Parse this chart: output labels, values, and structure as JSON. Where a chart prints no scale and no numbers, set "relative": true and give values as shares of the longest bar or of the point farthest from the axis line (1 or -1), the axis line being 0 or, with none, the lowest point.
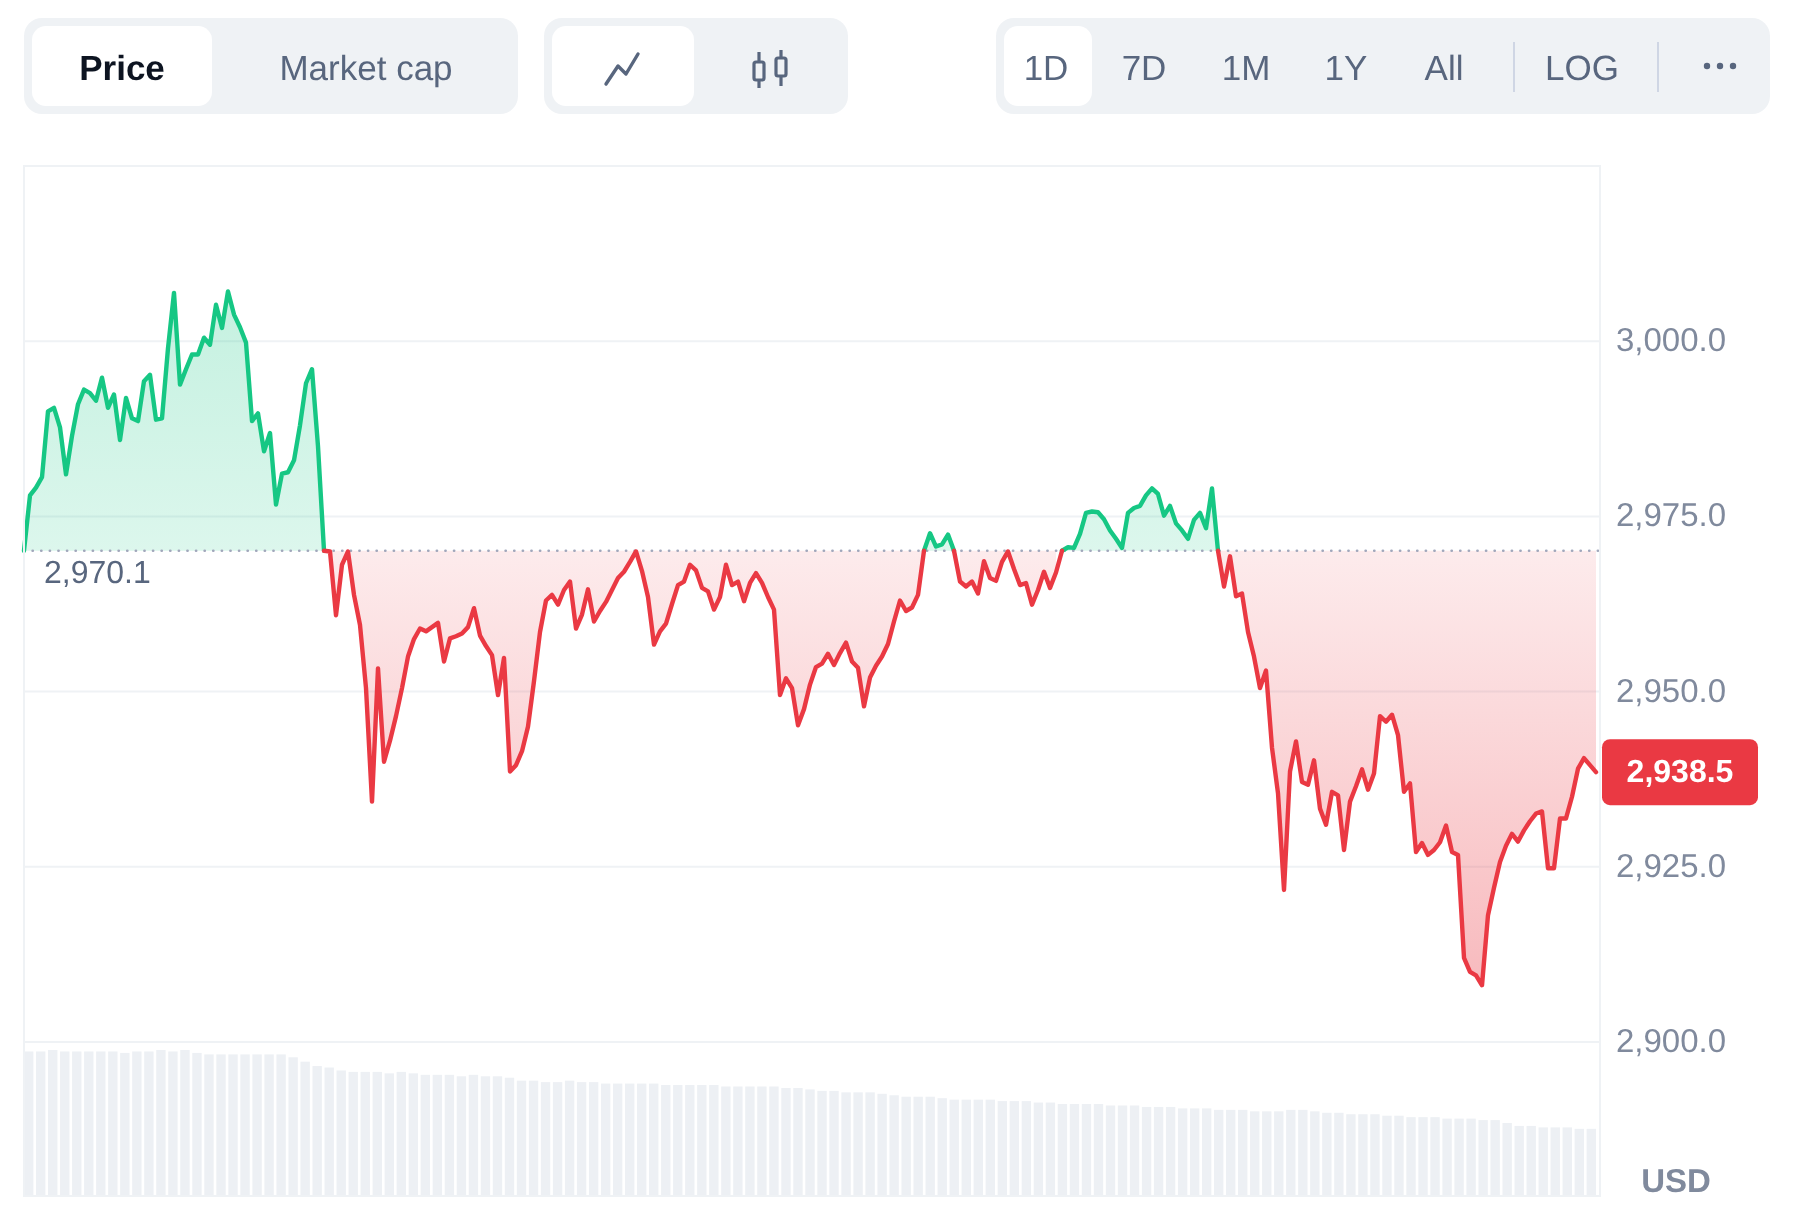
{
  "chart_data": [
    {
      "type": "line",
      "categories": [
        null,
        null,
        null,
        null,
        null,
        null,
        null,
        null,
        null,
        null,
        null,
        null,
        null,
        null,
        null,
        null,
        null,
        null,
        null,
        null,
        null,
        null,
        null,
        null,
        null,
        null,
        null,
        null,
        null,
        null,
        null,
        null,
        null,
        null,
        null,
        null,
        null,
        null,
        null,
        null,
        null,
        null,
        null,
        null,
        null,
        null,
        null,
        null,
        null,
        null,
        null,
        null,
        null,
        null,
        null,
        null,
        null,
        null,
        null,
        null,
        null,
        null,
        null,
        null,
        null,
        null,
        null,
        null,
        null,
        null,
        null,
        null,
        null,
        null,
        null,
        null,
        null,
        null,
        null,
        null,
        null,
        null,
        null,
        null,
        null,
        null,
        null,
        null,
        null,
        null,
        null,
        null,
        null,
        null,
        null,
        null,
        null,
        null,
        null,
        null,
        null,
        null,
        null,
        null,
        null,
        null,
        null,
        null,
        null,
        null,
        null,
        null,
        null,
        null,
        null,
        null,
        null,
        null,
        null,
        null,
        null,
        null,
        null,
        null,
        null,
        null,
        null,
        null,
        null,
        null,
        null,
        null,
        null,
        null,
        null,
        null,
        null,
        null,
        null,
        null,
        null,
        null,
        null,
        null,
        null,
        null,
        null,
        null,
        null,
        null,
        null,
        null,
        null,
        null,
        null,
        null,
        null,
        null,
        null,
        null,
        null,
        null,
        null,
        null,
        null,
        null,
        null,
        null,
        null,
        null,
        null,
        null,
        null,
        null,
        null,
        null,
        null,
        null,
        null,
        null,
        null,
        null,
        null,
        null,
        null,
        null,
        null,
        null,
        null,
        null,
        null,
        null,
        null,
        null,
        null,
        null,
        null,
        null,
        null,
        null,
        null,
        null,
        null,
        null,
        null,
        null,
        null,
        null,
        null,
        null,
        null,
        null,
        null,
        null,
        null,
        null,
        null,
        null,
        null,
        null,
        null,
        null,
        null,
        null,
        null,
        null,
        null,
        null,
        null,
        null,
        null,
        null,
        null,
        null,
        null,
        null,
        null,
        null,
        null,
        null,
        null,
        null,
        null,
        null,
        null,
        null,
        null,
        null,
        null,
        null,
        null,
        null,
        null,
        null,
        null,
        null,
        null,
        null,
        null,
        null,
        null,
        null,
        null
      ],
      "series": [
        {
          "color": "#16c784",
          "values": [
            2970.1,
            2978.0,
            2979.1,
            2980.6,
            2990.0,
            2990.5,
            2987.7,
            2981.0,
            2986.5,
            2991.0,
            2993.1,
            2992.6,
            2991.5,
            2994.8,
            2990.5,
            2992.4,
            2985.9,
            2991.9,
            2989.0,
            2988.6,
            2994.3,
            2995.2,
            2988.8,
            2989.0,
            2999.0,
            3006.9,
            2993.8,
            2996.0,
            2998.1,
            2998.1,
            3000.5,
            2999.5,
            3005.2,
            3001.9,
            3007.1,
            3003.8,
            3002.0,
            2999.8,
            2988.6,
            2989.7,
            2984.3,
            2986.9,
            2976.7,
            2981.1,
            2981.3,
            2983.0,
            2988.0,
            2994.0,
            2996.0,
            2985.0,
            2970.1,
            null,
            null,
            null,
            null,
            null,
            null,
            null,
            null,
            null,
            null,
            null,
            null,
            null,
            null,
            null,
            null,
            null,
            null,
            null,
            null,
            null,
            null,
            null,
            null,
            null,
            null,
            null,
            null,
            null,
            null,
            null,
            null,
            null,
            null,
            null,
            null,
            null,
            null,
            null,
            null,
            null,
            null,
            null,
            null,
            null,
            null,
            null,
            null,
            null,
            null,
            null,
            null,
            null,
            null,
            null,
            null,
            null,
            null,
            null,
            null,
            null,
            null,
            null,
            null,
            null,
            null,
            null,
            null,
            null,
            null,
            null,
            null,
            null,
            null,
            null,
            null,
            null,
            null,
            null,
            null,
            null,
            null,
            null,
            null,
            null,
            null,
            null,
            null,
            null,
            null,
            null,
            null,
            null,
            null,
            null,
            null,
            null,
            null,
            null,
            2970.1,
            2972.6,
            2970.7,
            2971.0,
            2972.4,
            2970.1,
            null,
            null,
            null,
            null,
            null,
            null,
            null,
            null,
            null,
            null,
            null,
            null,
            null,
            null,
            null,
            null,
            null,
            2970.1,
            2970.6,
            2970.5,
            2972.5,
            2975.5,
            2975.7,
            2975.6,
            2974.6,
            2973.0,
            2971.8,
            2970.5,
            2975.5,
            2976.2,
            2976.5,
            2978.0,
            2979.0,
            2978.2,
            2975.1,
            2976.5,
            2974.0,
            2973.0,
            2971.8,
            2974.5,
            2975.5,
            2973.3,
            2979.0,
            2970.1,
            null,
            null,
            null,
            null,
            null,
            null,
            null,
            null,
            null,
            null,
            null,
            null,
            null,
            null,
            null,
            null,
            null,
            null,
            null,
            null,
            null,
            null,
            null,
            null,
            null,
            null,
            null,
            null,
            null,
            null,
            null,
            null,
            null,
            null,
            null,
            null,
            null,
            null,
            null,
            null,
            null,
            null,
            null,
            null,
            null,
            null,
            null,
            null,
            null,
            null,
            null,
            null,
            null,
            null,
            null,
            null,
            null,
            null,
            null,
            null,
            null,
            null,
            null
          ],
          "lower": [
            2970.1,
            2970.1,
            2970.1,
            2970.1,
            2970.1,
            2970.1,
            2970.1,
            2970.1,
            2970.1,
            2970.1,
            2970.1,
            2970.1,
            2970.1,
            2970.1,
            2970.1,
            2970.1,
            2970.1,
            2970.1,
            2970.1,
            2970.1,
            2970.1,
            2970.1,
            2970.1,
            2970.1,
            2970.1,
            2970.1,
            2970.1,
            2970.1,
            2970.1,
            2970.1,
            2970.1,
            2970.1,
            2970.1,
            2970.1,
            2970.1,
            2970.1,
            2970.1,
            2970.1,
            2970.1,
            2970.1,
            2970.1,
            2970.1,
            2970.1,
            2970.1,
            2970.1,
            2970.1,
            2970.1,
            2970.1,
            2970.1,
            2970.1,
            2970.1,
            null,
            null,
            null,
            null,
            null,
            null,
            null,
            null,
            null,
            null,
            null,
            null,
            null,
            null,
            null,
            null,
            null,
            null,
            null,
            null,
            null,
            null,
            null,
            null,
            null,
            null,
            null,
            null,
            null,
            null,
            null,
            null,
            null,
            null,
            null,
            null,
            null,
            null,
            null,
            null,
            null,
            null,
            null,
            null,
            null,
            null,
            null,
            null,
            null,
            null,
            null,
            null,
            null,
            null,
            null,
            null,
            null,
            null,
            null,
            null,
            null,
            null,
            null,
            null,
            null,
            null,
            null,
            null,
            null,
            null,
            null,
            null,
            null,
            null,
            null,
            null,
            null,
            null,
            null,
            null,
            null,
            null,
            null,
            null,
            null,
            null,
            null,
            null,
            null,
            null,
            null,
            null,
            null,
            null,
            null,
            null,
            null,
            null,
            null,
            2970.1,
            2970.1,
            2970.1,
            2970.1,
            2970.1,
            2970.1,
            null,
            null,
            null,
            null,
            null,
            null,
            null,
            null,
            null,
            null,
            null,
            null,
            null,
            null,
            null,
            null,
            null,
            2970.1,
            2970.1,
            2970.1,
            2970.1,
            2970.1,
            2970.1,
            2970.1,
            2970.1,
            2970.1,
            2970.1,
            2970.1,
            2970.1,
            2970.1,
            2970.1,
            2970.1,
            2970.1,
            2970.1,
            2970.1,
            2970.1,
            2970.1,
            2970.1,
            2970.1,
            2970.1,
            2970.1,
            2970.1,
            2970.1,
            2970.1,
            null,
            null,
            null,
            null,
            null,
            null,
            null,
            null,
            null,
            null,
            null,
            null,
            null,
            null,
            null,
            null,
            null,
            null,
            null,
            null,
            null,
            null,
            null,
            null,
            null,
            null,
            null,
            null,
            null,
            null,
            null,
            null,
            null,
            null,
            null,
            null,
            null,
            null,
            null,
            null,
            null,
            null,
            null,
            null,
            null,
            null,
            null,
            null,
            null,
            null,
            null,
            null,
            null,
            null,
            null,
            null,
            null,
            null,
            null,
            null,
            null,
            null,
            null
          ],
          "upper": [
            2970.1,
            2978.0,
            2979.1,
            2980.6,
            2990.0,
            2990.5,
            2987.7,
            2981.0,
            2986.5,
            2991.0,
            2993.1,
            2992.6,
            2991.5,
            2994.8,
            2990.5,
            2992.4,
            2985.9,
            2991.9,
            2989.0,
            2988.6,
            2994.3,
            2995.2,
            2988.8,
            2989.0,
            2999.0,
            3006.9,
            2993.8,
            2996.0,
            2998.1,
            2998.1,
            3000.5,
            2999.5,
            3005.2,
            3001.9,
            3007.1,
            3003.8,
            3002.0,
            2999.8,
            2988.6,
            2989.7,
            2984.3,
            2986.9,
            2976.7,
            2981.1,
            2981.3,
            2983.0,
            2988.0,
            2994.0,
            2996.0,
            2985.0,
            2970.1,
            null,
            null,
            null,
            null,
            null,
            null,
            null,
            null,
            null,
            null,
            null,
            null,
            null,
            null,
            null,
            null,
            null,
            null,
            null,
            null,
            null,
            null,
            null,
            null,
            null,
            null,
            null,
            null,
            null,
            null,
            null,
            null,
            null,
            null,
            null,
            null,
            null,
            null,
            null,
            null,
            null,
            null,
            null,
            null,
            null,
            null,
            null,
            null,
            null,
            null,
            null,
            null,
            null,
            null,
            null,
            null,
            null,
            null,
            null,
            null,
            null,
            null,
            null,
            null,
            null,
            null,
            null,
            null,
            null,
            null,
            null,
            null,
            null,
            null,
            null,
            null,
            null,
            null,
            null,
            null,
            null,
            null,
            null,
            null,
            null,
            null,
            null,
            null,
            null,
            null,
            null,
            null,
            null,
            null,
            null,
            null,
            null,
            null,
            null,
            2970.1,
            2972.6,
            2970.7,
            2971.0,
            2972.4,
            2970.1,
            null,
            null,
            null,
            null,
            null,
            null,
            null,
            null,
            null,
            null,
            null,
            null,
            null,
            null,
            null,
            null,
            null,
            2970.1,
            2970.6,
            2970.5,
            2972.5,
            2975.5,
            2975.7,
            2975.6,
            2974.6,
            2973.0,
            2971.8,
            2970.5,
            2975.5,
            2976.2,
            2976.5,
            2978.0,
            2979.0,
            2978.2,
            2975.1,
            2976.5,
            2974.0,
            2973.0,
            2971.8,
            2974.5,
            2975.5,
            2973.3,
            2979.0,
            2970.1,
            null,
            null,
            null,
            null,
            null,
            null,
            null,
            null,
            null,
            null,
            null,
            null,
            null,
            null,
            null,
            null,
            null,
            null,
            null,
            null,
            null,
            null,
            null,
            null,
            null,
            null,
            null,
            null,
            null,
            null,
            null,
            null,
            null,
            null,
            null,
            null,
            null,
            null,
            null,
            null,
            null,
            null,
            null,
            null,
            null,
            null,
            null,
            null,
            null,
            null,
            null,
            null,
            null,
            null,
            null,
            null,
            null,
            null,
            null,
            null,
            null,
            null,
            null
          ]
        },
        {
          "color": "#ea3943",
          "values": [
            null,
            null,
            null,
            null,
            null,
            null,
            null,
            null,
            null,
            null,
            null,
            null,
            null,
            null,
            null,
            null,
            null,
            null,
            null,
            null,
            null,
            null,
            null,
            null,
            null,
            null,
            null,
            null,
            null,
            null,
            null,
            null,
            null,
            null,
            null,
            null,
            null,
            null,
            null,
            null,
            null,
            null,
            null,
            null,
            null,
            null,
            null,
            null,
            null,
            null,
            2970.1,
            2970.0,
            2960.9,
            2968.1,
            2970.0,
            2963.8,
            2959.5,
            2950.5,
            2934.3,
            2953.3,
            2940.0,
            2943.0,
            2946.5,
            2950.5,
            2955.0,
            2957.5,
            2959.0,
            2958.6,
            2959.2,
            2959.8,
            2954.3,
            2957.6,
            2957.9,
            2958.3,
            2959.2,
            2961.9,
            2958.0,
            2956.5,
            2955.2,
            2949.5,
            2954.8,
            2938.6,
            2939.5,
            2941.5,
            2945.0,
            2951.5,
            2958.5,
            2963.0,
            2963.8,
            2962.4,
            2964.5,
            2965.7,
            2959.0,
            2961.0,
            2964.6,
            2960.0,
            2961.5,
            2962.8,
            2964.5,
            2966.2,
            2967.1,
            2968.5,
            2970.0,
            2967.2,
            2963.5,
            2956.7,
            2958.6,
            2959.7,
            2962.5,
            2965.2,
            2965.7,
            2968.1,
            2967.3,
            2964.8,
            2964.3,
            2961.7,
            2963.5,
            2968.1,
            2965.2,
            2965.7,
            2962.9,
            2965.5,
            2966.9,
            2965.5,
            2963.5,
            2961.7,
            2949.5,
            2951.9,
            2950.5,
            2945.2,
            2947.5,
            2951.0,
            2953.5,
            2954.0,
            2955.4,
            2953.8,
            2955.5,
            2957.0,
            2954.3,
            2953.4,
            2947.9,
            2952.0,
            2953.7,
            2955.0,
            2956.8,
            2960.0,
            2963.0,
            2961.5,
            2962.0,
            2963.8,
            2970.1,
            null,
            null,
            null,
            null,
            2970.1,
            2965.7,
            2965.0,
            2965.7,
            2964.0,
            2968.6,
            2966.2,
            2965.8,
            2968.5,
            2970.0,
            2967.5,
            2965.2,
            2965.5,
            2962.4,
            2964.5,
            2967.1,
            2964.8,
            2967.0,
            2970.1,
            null,
            null,
            null,
            null,
            null,
            null,
            null,
            null,
            null,
            null,
            null,
            null,
            null,
            null,
            null,
            null,
            null,
            null,
            null,
            null,
            null,
            null,
            null,
            null,
            null,
            2970.1,
            2965.0,
            2969.3,
            2963.6,
            2964.0,
            2958.5,
            2955.0,
            2950.5,
            2953.0,
            2942.0,
            2935.5,
            2921.7,
            2938.6,
            2942.9,
            2937.1,
            2936.7,
            2940.2,
            2933.3,
            2931.0,
            2935.7,
            2935.2,
            2927.4,
            2934.3,
            2936.5,
            2938.9,
            2936.0,
            2938.3,
            2946.5,
            2945.7,
            2946.7,
            2943.8,
            2935.7,
            2936.9,
            2927.1,
            2928.4,
            2926.7,
            2927.4,
            2928.5,
            2930.9,
            2927.1,
            2926.7,
            2912.0,
            2910.0,
            2909.5,
            2908.1,
            2918.1,
            2922.0,
            2925.7,
            2928.0,
            2929.7,
            2928.6,
            2930.2,
            2931.5,
            2932.6,
            2932.9,
            2924.8,
            2924.8,
            2931.9,
            2931.9,
            2935.0,
            2939.0,
            2940.5,
            2939.5,
            2938.5
          ],
          "lower": [
            null,
            null,
            null,
            null,
            null,
            null,
            null,
            null,
            null,
            null,
            null,
            null,
            null,
            null,
            null,
            null,
            null,
            null,
            null,
            null,
            null,
            null,
            null,
            null,
            null,
            null,
            null,
            null,
            null,
            null,
            null,
            null,
            null,
            null,
            null,
            null,
            null,
            null,
            null,
            null,
            null,
            null,
            null,
            null,
            null,
            null,
            null,
            null,
            null,
            null,
            2970.1,
            2970.0,
            2960.9,
            2968.1,
            2970.0,
            2963.8,
            2959.5,
            2950.5,
            2934.3,
            2953.3,
            2940.0,
            2943.0,
            2946.5,
            2950.5,
            2955.0,
            2957.5,
            2959.0,
            2958.6,
            2959.2,
            2959.8,
            2954.3,
            2957.6,
            2957.9,
            2958.3,
            2959.2,
            2961.9,
            2958.0,
            2956.5,
            2955.2,
            2949.5,
            2954.8,
            2938.6,
            2939.5,
            2941.5,
            2945.0,
            2951.5,
            2958.5,
            2963.0,
            2963.8,
            2962.4,
            2964.5,
            2965.7,
            2959.0,
            2961.0,
            2964.6,
            2960.0,
            2961.5,
            2962.8,
            2964.5,
            2966.2,
            2967.1,
            2968.5,
            2970.0,
            2967.2,
            2963.5,
            2956.7,
            2958.6,
            2959.7,
            2962.5,
            2965.2,
            2965.7,
            2968.1,
            2967.3,
            2964.8,
            2964.3,
            2961.7,
            2963.5,
            2968.1,
            2965.2,
            2965.7,
            2962.9,
            2965.5,
            2966.9,
            2965.5,
            2963.5,
            2961.7,
            2949.5,
            2951.9,
            2950.5,
            2945.2,
            2947.5,
            2951.0,
            2953.5,
            2954.0,
            2955.4,
            2953.8,
            2955.5,
            2957.0,
            2954.3,
            2953.4,
            2947.9,
            2952.0,
            2953.7,
            2955.0,
            2956.8,
            2960.0,
            2963.0,
            2961.5,
            2962.0,
            2963.8,
            2970.1,
            null,
            null,
            null,
            null,
            null,
            2965.7,
            2965.0,
            2965.7,
            2964.0,
            2968.6,
            2966.2,
            2965.8,
            2968.5,
            2970.0,
            2967.5,
            2965.2,
            2965.5,
            2962.4,
            2964.5,
            2967.1,
            2964.8,
            2967.0,
            null,
            null,
            null,
            null,
            null,
            null,
            null,
            null,
            null,
            null,
            null,
            null,
            null,
            null,
            null,
            null,
            null,
            null,
            null,
            null,
            null,
            null,
            null,
            null,
            null,
            null,
            2970.1,
            2965.0,
            2969.3,
            2963.6,
            2964.0,
            2958.5,
            2955.0,
            2950.5,
            2953.0,
            2942.0,
            2935.5,
            2921.7,
            2938.6,
            2942.9,
            2937.1,
            2936.7,
            2940.2,
            2933.3,
            2931.0,
            2935.7,
            2935.2,
            2927.4,
            2934.3,
            2936.5,
            2938.9,
            2936.0,
            2938.3,
            2946.5,
            2945.7,
            2946.7,
            2943.8,
            2935.7,
            2936.9,
            2927.1,
            2928.4,
            2926.7,
            2927.4,
            2928.5,
            2930.9,
            2927.1,
            2926.7,
            2912.0,
            2910.0,
            2909.5,
            2908.1,
            2918.1,
            2922.0,
            2925.7,
            2928.0,
            2929.7,
            2928.6,
            2930.2,
            2931.5,
            2932.6,
            2932.9,
            2924.8,
            2924.8,
            2931.9,
            2931.9,
            2935.0,
            2939.0,
            2940.5,
            2939.5,
            2938.5
          ],
          "upper": [
            null,
            null,
            null,
            null,
            null,
            null,
            null,
            null,
            null,
            null,
            null,
            null,
            null,
            null,
            null,
            null,
            null,
            null,
            null,
            null,
            null,
            null,
            null,
            null,
            null,
            null,
            null,
            null,
            null,
            null,
            null,
            null,
            null,
            null,
            null,
            null,
            null,
            null,
            null,
            null,
            null,
            null,
            null,
            null,
            null,
            null,
            null,
            null,
            null,
            null,
            2970.1,
            2970.1,
            2970.1,
            2970.1,
            2970.1,
            2970.1,
            2970.1,
            2970.1,
            2970.1,
            2970.1,
            2970.1,
            2970.1,
            2970.1,
            2970.1,
            2970.1,
            2970.1,
            2970.1,
            2970.1,
            2970.1,
            2970.1,
            2970.1,
            2970.1,
            2970.1,
            2970.1,
            2970.1,
            2970.1,
            2970.1,
            2970.1,
            2970.1,
            2970.1,
            2970.1,
            2970.1,
            2970.1,
            2970.1,
            2970.1,
            2970.1,
            2970.1,
            2970.1,
            2970.1,
            2970.1,
            2970.1,
            2970.1,
            2970.1,
            2970.1,
            2970.1,
            2970.1,
            2970.1,
            2970.1,
            2970.1,
            2970.1,
            2970.1,
            2970.1,
            2970.1,
            2970.1,
            2970.1,
            2970.1,
            2970.1,
            2970.1,
            2970.1,
            2970.1,
            2970.1,
            2970.1,
            2970.1,
            2970.1,
            2970.1,
            2970.1,
            2970.1,
            2970.1,
            2970.1,
            2970.1,
            2970.1,
            2970.1,
            2970.1,
            2970.1,
            2970.1,
            2970.1,
            2970.1,
            2970.1,
            2970.1,
            2970.1,
            2970.1,
            2970.1,
            2970.1,
            2970.1,
            2970.1,
            2970.1,
            2970.1,
            2970.1,
            2970.1,
            2970.1,
            2970.1,
            2970.1,
            2970.1,
            2970.1,
            2970.1,
            2970.1,
            2970.1,
            2970.1,
            2970.1,
            2970.1,
            2970.1,
            null,
            null,
            null,
            null,
            null,
            2970.1,
            2970.1,
            2970.1,
            2970.1,
            2970.1,
            2970.1,
            2970.1,
            2970.1,
            2970.1,
            2970.1,
            2970.1,
            2970.1,
            2970.1,
            2970.1,
            2970.1,
            2970.1,
            2970.1,
            null,
            null,
            null,
            null,
            null,
            null,
            null,
            null,
            null,
            null,
            null,
            null,
            null,
            null,
            null,
            null,
            null,
            null,
            null,
            null,
            null,
            null,
            null,
            null,
            null,
            null,
            2970.1,
            2970.1,
            2970.1,
            2970.1,
            2970.1,
            2970.1,
            2970.1,
            2970.1,
            2970.1,
            2970.1,
            2970.1,
            2970.1,
            2970.1,
            2970.1,
            2970.1,
            2970.1,
            2970.1,
            2970.1,
            2970.1,
            2970.1,
            2970.1,
            2970.1,
            2970.1,
            2970.1,
            2970.1,
            2970.1,
            2970.1,
            2970.1,
            2970.1,
            2970.1,
            2970.1,
            2970.1,
            2970.1,
            2970.1,
            2970.1,
            2970.1,
            2970.1,
            2970.1,
            2970.1,
            2970.1,
            2970.1,
            2970.1,
            2970.1,
            2970.1,
            2970.1,
            2970.1,
            2970.1,
            2970.1,
            2970.1,
            2970.1,
            2970.1,
            2970.1,
            2970.1,
            2970.1,
            2970.1,
            2970.1,
            2970.1,
            2970.1,
            2970.1,
            2970.1,
            2970.1,
            2970.1,
            2970.1,
            2970.1
          ]
        }
      ],
      "ylim": [
        2900,
        3025
      ],
      "yticks": [
        {
          "value": 2900,
          "label": "2,900.0"
        },
        {
          "value": 2925,
          "label": "2,925.0"
        },
        {
          "value": 2950,
          "label": "2,950.0"
        },
        {
          "value": 2975,
          "label": "2,975.0"
        },
        {
          "value": 3000,
          "label": "3,000.0"
        }
      ],
      "ylabel": "USD",
      "grid": "y",
      "ref_lines": [
        {
          "axis": "y",
          "value": 2970.1,
          "label": "2,970.1",
          "line_style": "dotted",
          "color": "#a1a7bb"
        }
      ],
      "annotations": [
        "Price",
        "Market cap",
        "1D",
        "7D",
        "1M",
        "1Y",
        "All",
        "LOG",
        "2,938.5"
      ]
    },
    {
      "type": "bar",
      "relative": true,
      "color": "#edf0f4",
      "categories": [
        null,
        null,
        null,
        null,
        null,
        null,
        null,
        null,
        null,
        null,
        null,
        null,
        null,
        null,
        null,
        null,
        null,
        null,
        null,
        null,
        null,
        null,
        null,
        null,
        null,
        null,
        null,
        null,
        null,
        null,
        null,
        null,
        null,
        null,
        null,
        null,
        null,
        null,
        null,
        null,
        null,
        null,
        null,
        null,
        null,
        null,
        null,
        null,
        null,
        null,
        null,
        null,
        null,
        null,
        null,
        null,
        null,
        null,
        null,
        null,
        null,
        null,
        null,
        null,
        null,
        null,
        null,
        null,
        null,
        null,
        null,
        null,
        null,
        null,
        null,
        null,
        null,
        null,
        null,
        null,
        null,
        null,
        null,
        null,
        null,
        null,
        null,
        null,
        null,
        null,
        null,
        null,
        null,
        null,
        null,
        null,
        null,
        null,
        null,
        null,
        null,
        null,
        null,
        null,
        null,
        null,
        null,
        null,
        null,
        null,
        null,
        null,
        null,
        null,
        null,
        null,
        null,
        null,
        null,
        null,
        null,
        null,
        null,
        null,
        null,
        null,
        null,
        null,
        null,
        null,
        null
      ],
      "values": [
        0.99,
        0.99,
        1.0,
        0.99,
        0.99,
        0.99,
        0.99,
        0.99,
        0.98,
        0.99,
        0.99,
        1.0,
        0.99,
        1.0,
        0.98,
        0.97,
        0.97,
        0.97,
        0.97,
        0.97,
        0.97,
        0.97,
        0.95,
        0.92,
        0.89,
        0.88,
        0.86,
        0.85,
        0.85,
        0.85,
        0.84,
        0.85,
        0.84,
        0.83,
        0.83,
        0.83,
        0.82,
        0.83,
        0.82,
        0.82,
        0.81,
        0.79,
        0.79,
        0.78,
        0.78,
        0.79,
        0.78,
        0.78,
        0.77,
        0.77,
        0.77,
        0.77,
        0.77,
        0.76,
        0.76,
        0.76,
        0.76,
        0.76,
        0.75,
        0.75,
        0.75,
        0.75,
        0.75,
        0.74,
        0.74,
        0.73,
        0.72,
        0.72,
        0.71,
        0.71,
        0.71,
        0.7,
        0.69,
        0.68,
        0.68,
        0.68,
        0.67,
        0.66,
        0.66,
        0.66,
        0.66,
        0.65,
        0.65,
        0.65,
        0.64,
        0.64,
        0.63,
        0.63,
        0.63,
        0.63,
        0.62,
        0.62,
        0.62,
        0.61,
        0.61,
        0.61,
        0.6,
        0.6,
        0.6,
        0.59,
        0.59,
        0.59,
        0.58,
        0.58,
        0.58,
        0.59,
        0.59,
        0.58,
        0.57,
        0.57,
        0.56,
        0.56,
        0.56,
        0.55,
        0.55,
        0.54,
        0.54,
        0.54,
        0.53,
        0.53,
        0.53,
        0.52,
        0.52,
        0.5,
        0.48,
        0.48,
        0.47,
        0.47,
        0.47,
        0.46,
        0.46
      ]
    }
  ]
}
